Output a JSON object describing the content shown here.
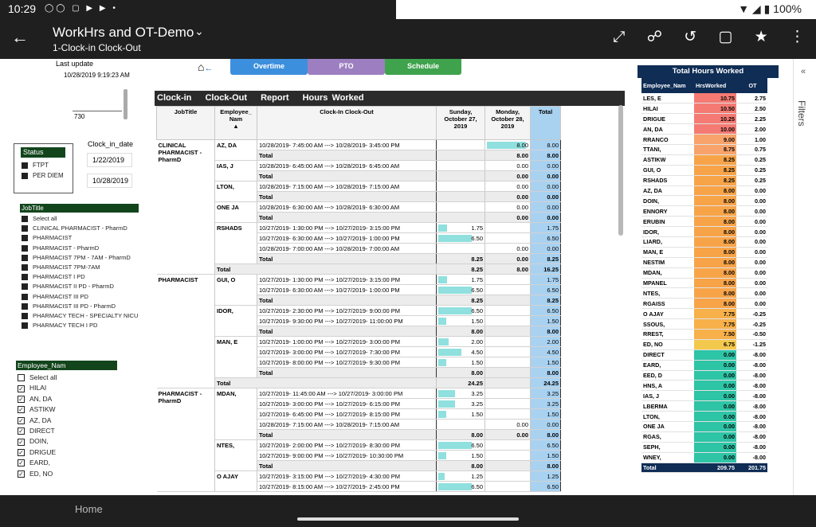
{
  "status_bar": {
    "time": "10:29",
    "icons": "◯◯ ▢ ▶ ▶ •",
    "battery": "▼ ◢ ▮ 100%"
  },
  "app": {
    "title": "WorkHrs and OT-Demo",
    "subtitle": "1-Clock-in Clock-Out"
  },
  "nav": {
    "home": "Home"
  },
  "filters_label": "Filters",
  "last_update": {
    "label": "Last update",
    "value": "10/28/2019 9:19:23 AM"
  },
  "slider_value": "730",
  "page_tabs": [
    {
      "label": "Overtime",
      "color": "#3c8fdd"
    },
    {
      "label": "PTO",
      "color": "#9d7fc1"
    },
    {
      "label": "Schedule",
      "color": "#3fa34d"
    }
  ],
  "status_filter": {
    "header": "Status",
    "items": [
      "FTPT",
      "PER DIEM"
    ]
  },
  "clock_in_date": {
    "label": "Clock_in_date",
    "from": "1/22/2019",
    "to": "10/28/2019"
  },
  "jobtitle_filter": {
    "header": "JobTitle",
    "items": [
      "Select all",
      "CLINICAL PHARMACIST - PharmD",
      "PHARMACIST",
      "PHARMACIST - PharmD",
      "PHARMACIST 7PM - 7AM - PharmD",
      "PHARMACIST 7PM-7AM",
      "PHARMACIST I PD",
      "PHARMACIST II PD - PharmD",
      "PHARMACIST III PD",
      "PHARMACIST III PD - PharmD",
      "PHARMACY TECH - SPECIALTY NICU",
      "PHARMACY TECH I PD"
    ]
  },
  "employee_filter": {
    "header": "Employee_Nam",
    "items": [
      "Select all",
      "HILAI",
      "AN, DA",
      "ASTIKW",
      "AZ, DA",
      "DIRECT",
      "DOIN,",
      "DRIGUE",
      "EARD,",
      "ED, NO"
    ]
  },
  "main_title": [
    "Clock-in",
    "Clock-Out",
    "Report",
    "Hours Worked"
  ],
  "main_headers": {
    "jobtitle": "JobTitle",
    "employee": "Employee_ Nam",
    "clock": "Clock-In Clock-Out",
    "sunday": "Sunday, October 27, 2019",
    "monday": "Monday, October 28, 2019",
    "total": "Total"
  },
  "main_rows": [
    {
      "job": "CLINICAL PHARMACIST - PharmD",
      "emp": "AZ, DA",
      "clock": "10/28/2019- 7:45:00 AM ---> 10/28/2019- 3:45:00 PM",
      "sun": "",
      "mon": "8.00",
      "tot": "8.00",
      "sunb": 0,
      "monb": 8
    },
    {
      "job": "",
      "emp": "",
      "clock": "Total",
      "sun": "",
      "mon": "8.00",
      "tot": "8.00",
      "sub": true
    },
    {
      "job": "",
      "emp": "IAS, J",
      "clock": "10/28/2019- 6:45:00 AM ---> 10/28/2019- 6:45:00 AM",
      "sun": "",
      "mon": "0.00",
      "tot": "0.00"
    },
    {
      "job": "",
      "emp": "",
      "clock": "Total",
      "sun": "",
      "mon": "0.00",
      "tot": "0.00",
      "sub": true
    },
    {
      "job": "",
      "emp": "LTON,",
      "clock": "10/28/2019- 7:15:00 AM ---> 10/28/2019- 7:15:00 AM",
      "sun": "",
      "mon": "0.00",
      "tot": "0.00"
    },
    {
      "job": "",
      "emp": "",
      "clock": "Total",
      "sun": "",
      "mon": "0.00",
      "tot": "0.00",
      "sub": true
    },
    {
      "job": "",
      "emp": "ONE JA",
      "clock": "10/28/2019- 6:30:00 AM ---> 10/28/2019- 6:30:00 AM",
      "sun": "",
      "mon": "0.00",
      "tot": "0.00"
    },
    {
      "job": "",
      "emp": "",
      "clock": "Total",
      "sun": "",
      "mon": "0.00",
      "tot": "0.00",
      "sub": true
    },
    {
      "job": "",
      "emp": "RSHADS",
      "clock": "10/27/2019- 1:30:00 PM ---> 10/27/2019- 3:15:00 PM",
      "sun": "1.75",
      "mon": "",
      "tot": "1.75",
      "sunb": 1.75
    },
    {
      "job": "",
      "emp": "",
      "clock": "10/27/2019- 6:30:00 AM ---> 10/27/2019- 1:00:00 PM",
      "sun": "6.50",
      "mon": "",
      "tot": "6.50",
      "sunb": 6.5
    },
    {
      "job": "",
      "emp": "",
      "clock": "10/28/2019- 7:00:00 AM ---> 10/28/2019- 7:00:00 AM",
      "sun": "",
      "mon": "0.00",
      "tot": "0.00"
    },
    {
      "job": "",
      "emp": "",
      "clock": "Total",
      "sun": "8.25",
      "mon": "0.00",
      "tot": "8.25",
      "sub": true
    },
    {
      "job": "",
      "emp": "Total",
      "clock": "",
      "sun": "8.25",
      "mon": "8.00",
      "tot": "16.25",
      "grp": true
    },
    {
      "job": "PHARMACIST",
      "emp": "GUI, O",
      "clock": "10/27/2019- 1:30:00 PM ---> 10/27/2019- 3:15:00 PM",
      "sun": "1.75",
      "mon": "",
      "tot": "1.75",
      "sunb": 1.75
    },
    {
      "job": "",
      "emp": "",
      "clock": "10/27/2019- 6:30:00 AM ---> 10/27/2019- 1:00:00 PM",
      "sun": "6.50",
      "mon": "",
      "tot": "6.50",
      "sunb": 6.5
    },
    {
      "job": "",
      "emp": "",
      "clock": "Total",
      "sun": "8.25",
      "mon": "",
      "tot": "8.25",
      "sub": true
    },
    {
      "job": "",
      "emp": "IDOR,",
      "clock": "10/27/2019- 2:30:00 PM ---> 10/27/2019- 9:00:00 PM",
      "sun": "6.50",
      "mon": "",
      "tot": "6.50",
      "sunb": 6.5
    },
    {
      "job": "",
      "emp": "",
      "clock": "10/27/2019- 9:30:00 PM ---> 10/27/2019- 11:00:00 PM",
      "sun": "1.50",
      "mon": "",
      "tot": "1.50",
      "sunb": 1.5
    },
    {
      "job": "",
      "emp": "",
      "clock": "Total",
      "sun": "8.00",
      "mon": "",
      "tot": "8.00",
      "sub": true
    },
    {
      "job": "",
      "emp": "MAN, E",
      "clock": "10/27/2019- 1:00:00 PM ---> 10/27/2019- 3:00:00 PM",
      "sun": "2.00",
      "mon": "",
      "tot": "2.00",
      "sunb": 2
    },
    {
      "job": "",
      "emp": "",
      "clock": "10/27/2019- 3:00:00 PM ---> 10/27/2019- 7:30:00 PM",
      "sun": "4.50",
      "mon": "",
      "tot": "4.50",
      "sunb": 4.5
    },
    {
      "job": "",
      "emp": "",
      "clock": "10/27/2019- 8:00:00 PM ---> 10/27/2019- 9:30:00 PM",
      "sun": "1.50",
      "mon": "",
      "tot": "1.50",
      "sunb": 1.5
    },
    {
      "job": "",
      "emp": "",
      "clock": "Total",
      "sun": "8.00",
      "mon": "",
      "tot": "8.00",
      "sub": true
    },
    {
      "job": "",
      "emp": "Total",
      "clock": "",
      "sun": "24.25",
      "mon": "",
      "tot": "24.25",
      "grp": true
    },
    {
      "job": "PHARMACIST - PharmD",
      "emp": "MDAN,",
      "clock": "10/27/2019- 11:45:00 AM ---> 10/27/2019- 3:00:00 PM",
      "sun": "3.25",
      "mon": "",
      "tot": "3.25",
      "sunb": 3.25
    },
    {
      "job": "",
      "emp": "",
      "clock": "10/27/2019- 3:00:00 PM ---> 10/27/2019- 6:15:00 PM",
      "sun": "3.25",
      "mon": "",
      "tot": "3.25",
      "sunb": 3.25
    },
    {
      "job": "",
      "emp": "",
      "clock": "10/27/2019- 6:45:00 PM ---> 10/27/2019- 8:15:00 PM",
      "sun": "1.50",
      "mon": "",
      "tot": "1.50",
      "sunb": 1.5
    },
    {
      "job": "",
      "emp": "",
      "clock": "10/28/2019- 7:15:00 AM ---> 10/28/2019- 7:15:00 AM",
      "sun": "",
      "mon": "0.00",
      "tot": "0.00"
    },
    {
      "job": "",
      "emp": "",
      "clock": "Total",
      "sun": "8.00",
      "mon": "0.00",
      "tot": "8.00",
      "sub": true
    },
    {
      "job": "",
      "emp": "NTES,",
      "clock": "10/27/2019- 2:00:00 PM ---> 10/27/2019- 8:30:00 PM",
      "sun": "6.50",
      "mon": "",
      "tot": "6.50",
      "sunb": 6.5
    },
    {
      "job": "",
      "emp": "",
      "clock": "10/27/2019- 9:00:00 PM ---> 10/27/2019- 10:30:00 PM",
      "sun": "1.50",
      "mon": "",
      "tot": "1.50",
      "sunb": 1.5
    },
    {
      "job": "",
      "emp": "",
      "clock": "Total",
      "sun": "8.00",
      "mon": "",
      "tot": "8.00",
      "sub": true
    },
    {
      "job": "",
      "emp": "O AJAY",
      "clock": "10/27/2019- 3:15:00 PM ---> 10/27/2019- 4:30:00 PM",
      "sun": "1.25",
      "mon": "",
      "tot": "1.25",
      "sunb": 1.25
    },
    {
      "job": "",
      "emp": "",
      "clock": "10/27/2019- 8:15:00 AM ---> 10/27/2019- 2:45:00 PM",
      "sun": "6.50",
      "mon": "",
      "tot": "6.50",
      "sunb": 6.5
    }
  ],
  "right_table": {
    "title": "Total Hours Worked",
    "headers": [
      "Employee_Nam",
      "HrsWorked",
      "OT"
    ],
    "rows": [
      [
        "LES, E",
        "10.75",
        "2.75"
      ],
      [
        "HILAI",
        "10.50",
        "2.50"
      ],
      [
        "DRIGUE",
        "10.25",
        "2.25"
      ],
      [
        "AN, DA",
        "10.00",
        "2.00"
      ],
      [
        "RRANCO",
        "9.00",
        "1.00"
      ],
      [
        "TTANI,",
        "8.75",
        "0.75"
      ],
      [
        "ASTIKW",
        "8.25",
        "0.25"
      ],
      [
        "GUI, O",
        "8.25",
        "0.25"
      ],
      [
        "RSHADS",
        "8.25",
        "0.25"
      ],
      [
        "AZ, DA",
        "8.00",
        "0.00"
      ],
      [
        "DOIN,",
        "8.00",
        "0.00"
      ],
      [
        "ENNORY",
        "8.00",
        "0.00"
      ],
      [
        "ERUBIN",
        "8.00",
        "0.00"
      ],
      [
        "IDOR,",
        "8.00",
        "0.00"
      ],
      [
        "LIARD,",
        "8.00",
        "0.00"
      ],
      [
        "MAN, E",
        "8.00",
        "0.00"
      ],
      [
        "NESTIM",
        "8.00",
        "0.00"
      ],
      [
        "MDAN,",
        "8.00",
        "0.00"
      ],
      [
        "MPANEL",
        "8.00",
        "0.00"
      ],
      [
        "NTES,",
        "8.00",
        "0.00"
      ],
      [
        "RGAISS",
        "8.00",
        "0.00"
      ],
      [
        "O AJAY",
        "7.75",
        "-0.25"
      ],
      [
        "SSOUS,",
        "7.75",
        "-0.25"
      ],
      [
        "RREST,",
        "7.50",
        "-0.50"
      ],
      [
        "ED, NO",
        "6.75",
        "-1.25"
      ],
      [
        "DIRECT",
        "0.00",
        "-8.00"
      ],
      [
        "EARD,",
        "0.00",
        "-8.00"
      ],
      [
        "EED, D",
        "0.00",
        "-8.00"
      ],
      [
        "HNS, A",
        "0.00",
        "-8.00"
      ],
      [
        "IAS, J",
        "0.00",
        "-8.00"
      ],
      [
        "LBERMA",
        "0.00",
        "-8.00"
      ],
      [
        "LTON,",
        "0.00",
        "-8.00"
      ],
      [
        "ONE JA",
        "0.00",
        "-8.00"
      ],
      [
        "RGAS,",
        "0.00",
        "-8.00"
      ],
      [
        "SEPH,",
        "0.00",
        "-8.00"
      ],
      [
        "WNEY,",
        "0.00",
        "-8.00"
      ]
    ],
    "total": [
      "Total",
      "209.75",
      "201.75"
    ]
  }
}
